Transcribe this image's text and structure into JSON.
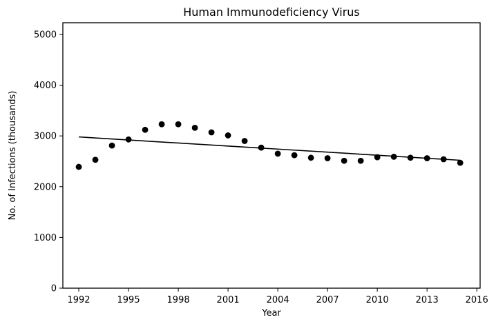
{
  "chart_data": {
    "type": "scatter",
    "title": "Human Immunodeficiency Virus",
    "xlabel": "Year",
    "ylabel": "No. of Infections (thousands)",
    "xlim": [
      1991.04,
      2016.2
    ],
    "ylim": [
      0,
      5230
    ],
    "xticks": [
      1992,
      1995,
      1998,
      2001,
      2004,
      2007,
      2010,
      2013,
      2016
    ],
    "yticks": [
      0,
      1000,
      2000,
      3000,
      4000,
      5000
    ],
    "grid": false,
    "legend": "none",
    "point_color": "#000000",
    "line_color": "#000000",
    "series": [
      {
        "type": "scatter",
        "x": [
          1992,
          1993,
          1994,
          1995,
          1996,
          1997,
          1998,
          1999,
          2000,
          2001,
          2002,
          2003,
          2004,
          2005,
          2006,
          2007,
          2008,
          2009,
          2010,
          2011,
          2012,
          2013,
          2014,
          2015
        ],
        "y": [
          2390,
          2530,
          2810,
          2930,
          3120,
          3230,
          3230,
          3160,
          3070,
          3010,
          2900,
          2770,
          2650,
          2620,
          2570,
          2560,
          2510,
          2510,
          2580,
          2590,
          2570,
          2560,
          2540,
          2470
        ]
      },
      {
        "type": "line",
        "x": [
          1992,
          2015
        ],
        "y": [
          2980,
          2520
        ]
      }
    ]
  }
}
